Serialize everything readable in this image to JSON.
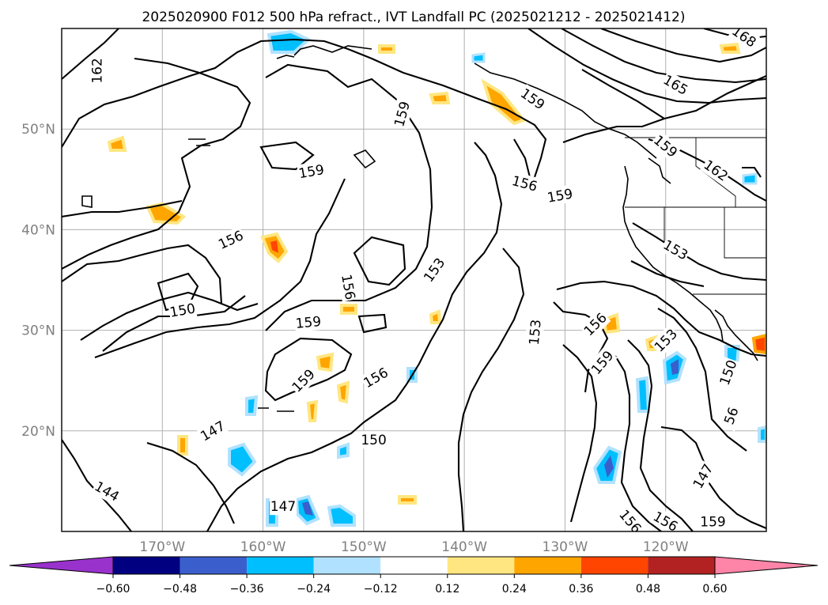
{
  "title": "2025020900 F012 500 hPa refract., IVT Landfall PC (2025021212 - 2025021412)",
  "map": {
    "lon_range": [
      -180,
      -110
    ],
    "lat_range": [
      10,
      60
    ],
    "grid": true,
    "lon_ticks": [
      {
        "value": -170,
        "label": "170°W"
      },
      {
        "value": -160,
        "label": "160°W"
      },
      {
        "value": -150,
        "label": "150°W"
      },
      {
        "value": -140,
        "label": "140°W"
      },
      {
        "value": -130,
        "label": "130°W"
      },
      {
        "value": -120,
        "label": "120°W"
      }
    ],
    "lat_ticks": [
      {
        "value": 20,
        "label": "20°N"
      },
      {
        "value": 30,
        "label": "30°N"
      },
      {
        "value": 40,
        "label": "40°N"
      },
      {
        "value": 50,
        "label": "50°N"
      }
    ],
    "contour_labels": [
      {
        "text": "162",
        "lon": -176.5,
        "lat": 55.8,
        "rot": -90
      },
      {
        "text": "159",
        "lon": -146.2,
        "lat": 51.5,
        "rot": -75
      },
      {
        "text": "159",
        "lon": -155.2,
        "lat": 45.8,
        "rot": -10
      },
      {
        "text": "156",
        "lon": -163.2,
        "lat": 39.0,
        "rot": -25
      },
      {
        "text": "153",
        "lon": -143.0,
        "lat": 36.0,
        "rot": -55
      },
      {
        "text": "156",
        "lon": -151.5,
        "lat": 34.3,
        "rot": 80
      },
      {
        "text": "150",
        "lon": -168.0,
        "lat": 32.0,
        "rot": -10
      },
      {
        "text": "159",
        "lon": -155.5,
        "lat": 30.8,
        "rot": -5
      },
      {
        "text": "153",
        "lon": -133.0,
        "lat": 29.8,
        "rot": -85
      },
      {
        "text": "159",
        "lon": -156.0,
        "lat": 25.0,
        "rot": -45
      },
      {
        "text": "156",
        "lon": -148.8,
        "lat": 25.3,
        "rot": -30
      },
      {
        "text": "147",
        "lon": -165.0,
        "lat": 20.0,
        "rot": -30
      },
      {
        "text": "150",
        "lon": -149.0,
        "lat": 19.1,
        "rot": 0
      },
      {
        "text": "144",
        "lon": -175.5,
        "lat": 14.0,
        "rot": 30
      },
      {
        "text": "147",
        "lon": -158.0,
        "lat": 12.5,
        "rot": 0
      },
      {
        "text": "159",
        "lon": -133.2,
        "lat": 53.0,
        "rot": 35
      },
      {
        "text": "156",
        "lon": -134.0,
        "lat": 44.6,
        "rot": 15
      },
      {
        "text": "159",
        "lon": -130.5,
        "lat": 43.4,
        "rot": -10
      },
      {
        "text": "165",
        "lon": -119.0,
        "lat": 54.4,
        "rot": 30
      },
      {
        "text": "159",
        "lon": -120.0,
        "lat": 48.3,
        "rot": 40
      },
      {
        "text": "162",
        "lon": -115.0,
        "lat": 45.9,
        "rot": 35
      },
      {
        "text": "168",
        "lon": -112.2,
        "lat": 59.2,
        "rot": 35
      },
      {
        "text": "153",
        "lon": -119.0,
        "lat": 38.0,
        "rot": 30
      },
      {
        "text": "156",
        "lon": -127.0,
        "lat": 30.6,
        "rot": -45
      },
      {
        "text": "159",
        "lon": -126.3,
        "lat": 26.8,
        "rot": -50
      },
      {
        "text": "153",
        "lon": -120.0,
        "lat": 29.0,
        "rot": -45
      },
      {
        "text": "150",
        "lon": -113.8,
        "lat": 25.8,
        "rot": -70
      },
      {
        "text": "56",
        "lon": -113.5,
        "lat": 21.5,
        "rot": -70
      },
      {
        "text": "147",
        "lon": -116.3,
        "lat": 15.5,
        "rot": -60
      },
      {
        "text": "156",
        "lon": -120.0,
        "lat": 11.0,
        "rot": 30
      },
      {
        "text": "159",
        "lon": -115.3,
        "lat": 11.0,
        "rot": 0
      },
      {
        "text": "156",
        "lon": -123.5,
        "lat": 11.0,
        "rot": 50
      }
    ]
  },
  "colorbar": {
    "boundaries": [
      -0.6,
      -0.48,
      -0.36,
      -0.24,
      -0.12,
      0.12,
      0.24,
      0.36,
      0.48,
      0.6
    ],
    "labels": [
      "−0.60",
      "−0.48",
      "−0.36",
      "−0.24",
      "−0.12",
      "0.12",
      "0.24",
      "0.36",
      "0.48",
      "0.60"
    ],
    "under_color": "#9932cc",
    "over_color": "#ff85a8",
    "colors": [
      "#000080",
      "#3a5fcd",
      "#00bfff",
      "#b0e2ff",
      "#ffffff",
      "#ffe680",
      "#ffa500",
      "#ff4500",
      "#b22222"
    ]
  }
}
